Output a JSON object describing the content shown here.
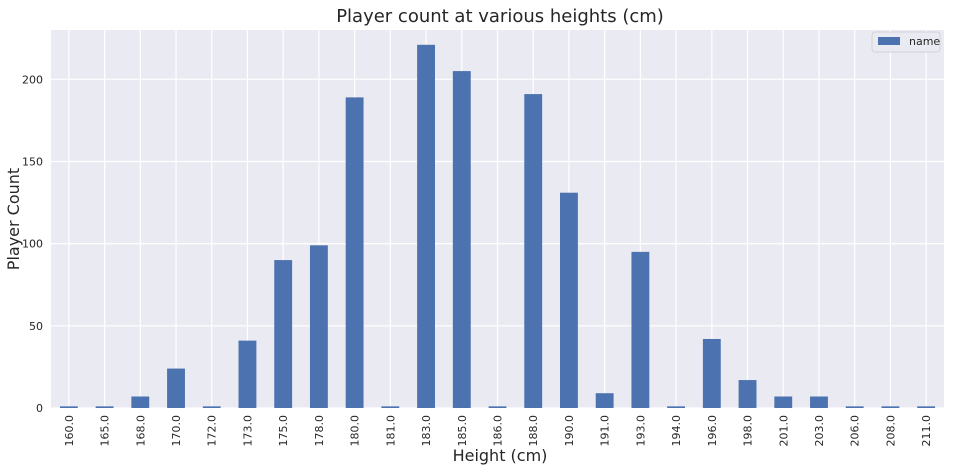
{
  "chart_data": {
    "type": "bar",
    "title": "Player count at various heights (cm)",
    "xlabel": "Height (cm)",
    "ylabel": "Player Count",
    "categories": [
      "160.0",
      "165.0",
      "168.0",
      "170.0",
      "172.0",
      "173.0",
      "175.0",
      "178.0",
      "180.0",
      "181.0",
      "183.0",
      "185.0",
      "186.0",
      "188.0",
      "190.0",
      "191.0",
      "193.0",
      "194.0",
      "196.0",
      "198.0",
      "201.0",
      "203.0",
      "206.0",
      "208.0",
      "211.0"
    ],
    "series": [
      {
        "name": "name",
        "values": [
          1,
          1,
          7,
          24,
          1,
          41,
          90,
          99,
          189,
          1,
          221,
          205,
          1,
          191,
          131,
          9,
          95,
          1,
          42,
          17,
          7,
          7,
          1,
          1,
          1
        ]
      }
    ],
    "ylim": [
      0,
      230
    ],
    "yticks": [
      "0",
      "50",
      "100",
      "150",
      "200"
    ],
    "grid": true,
    "legend_position": "top-right",
    "colors": {
      "bar": "#4c72b0",
      "background": "#eaeaf2",
      "grid": "#ffffff"
    }
  }
}
